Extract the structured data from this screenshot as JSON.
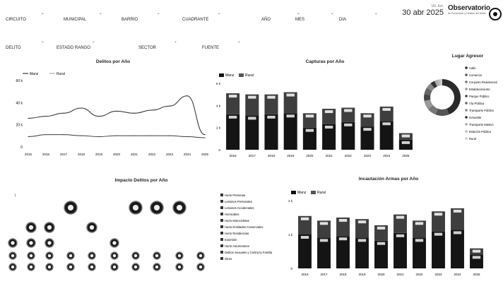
{
  "header": {
    "date": "30 abr 2025",
    "date_prefix": "Ult. Act.",
    "logo_title": "Observatorio",
    "logo_subtitle": "de Prevención y Gestión del Delito"
  },
  "filters_row1": [
    {
      "label": "CIRCUITO",
      "value": ""
    },
    {
      "label": "MUNICIPAL",
      "value": ""
    },
    {
      "label": "BARRIO",
      "value": ""
    },
    {
      "label": "CUADRANTE",
      "value": ""
    },
    {
      "label": "AÑO",
      "value": ""
    },
    {
      "label": "MES",
      "value": ""
    },
    {
      "label": "DIA",
      "value": ""
    }
  ],
  "filters_row2": [
    {
      "label": "DELITO",
      "value": ""
    },
    {
      "label": "ESTADO RANGO",
      "value": ""
    },
    {
      "label": "SECTOR",
      "value": ""
    },
    {
      "label": "FUENTE",
      "value": ""
    }
  ],
  "charts": {
    "delitos_title": "Delitos por Año",
    "capturas_title": "Capturas por Año",
    "lugar_title": "Lugar Agresor",
    "impacto_title": "Impacto Delitos por Año",
    "incautacion_title": "Incautación Armas por Año",
    "legend_manz": "Manz",
    "legend_rural": "Rural"
  },
  "chart_data": [
    {
      "type": "line",
      "title": "Delitos por Año",
      "x": [
        "2015",
        "2016",
        "2017",
        "2018",
        "2019",
        "2020",
        "2021",
        "2022",
        "2023",
        "2024",
        "2025"
      ],
      "series": [
        {
          "name": "Manz",
          "values": [
            28,
            30,
            33,
            38,
            30,
            35,
            33,
            36,
            40,
            50,
            12
          ]
        },
        {
          "name": "Rural",
          "values": [
            10,
            12,
            12,
            11,
            10,
            11,
            11,
            11,
            11,
            10,
            9
          ]
        }
      ],
      "yticks": [
        "0",
        "20 k",
        "40 k",
        "60 k"
      ],
      "ylim": [
        0,
        65
      ]
    },
    {
      "type": "bar",
      "title": "Capturas por Año",
      "categories": [
        "2016",
        "2017",
        "2018",
        "2019",
        "2020",
        "2021",
        "2022",
        "2023",
        "2024",
        "2025"
      ],
      "series": [
        {
          "name": "Manz",
          "values": [
            3.2,
            3.1,
            3.2,
            3.3,
            2.0,
            2.3,
            2.5,
            2.1,
            2.6,
            0.9
          ]
        },
        {
          "name": "Rural",
          "values": [
            1.9,
            1.9,
            1.8,
            1.9,
            1.3,
            1.4,
            1.3,
            1.2,
            1.3,
            0.6
          ]
        }
      ],
      "yticks": [
        "0",
        "2 k",
        "4 k",
        "6 k"
      ],
      "ylim": [
        0,
        6
      ]
    },
    {
      "type": "pie",
      "title": "Lugar Agresor",
      "slices": [
        {
          "label": "Calle",
          "value": 44
        },
        {
          "label": "Comercio",
          "value": 12
        },
        {
          "label": "Conjunto Residencial",
          "value": 8
        },
        {
          "label": "Establecimiento",
          "value": 8
        },
        {
          "label": "Parque Público",
          "value": 6
        },
        {
          "label": "Vía Pública",
          "value": 6
        },
        {
          "label": "Transporte Público",
          "value": 5
        },
        {
          "label": "Inmueble",
          "value": 4
        },
        {
          "label": "Transporte Masivo",
          "value": 3
        },
        {
          "label": "Estación Pública",
          "value": 2
        },
        {
          "label": "Rural",
          "value": 2
        }
      ]
    },
    {
      "type": "scatter",
      "title": "Impacto Delitos por Año",
      "legend": [
        "Hurto Personas",
        "Lesiones Personales",
        "Lesiones Accidentales",
        "Homicidios",
        "Hurto Motocicletas",
        "Hurto Entidades Comerciales",
        "Hurto Residencias",
        "Extorsión",
        "Hurto Automotores",
        "Delitos Sexuales y Contra la Familia",
        "Otros"
      ]
    },
    {
      "type": "bar",
      "title": "Incautación Armas por Año",
      "categories": [
        "2016",
        "2017",
        "2018",
        "2019",
        "2020",
        "2021",
        "2022",
        "2023",
        "2024",
        "2025"
      ],
      "series": [
        {
          "name": "Manz",
          "values": [
            1.1,
            1.0,
            1.05,
            1.0,
            0.9,
            1.15,
            1.0,
            1.2,
            1.25,
            0.45
          ]
        },
        {
          "name": "Rural",
          "values": [
            0.6,
            0.55,
            0.6,
            0.6,
            0.5,
            0.6,
            0.55,
            0.65,
            0.7,
            0.2
          ]
        }
      ],
      "yticks": [
        "0",
        "1 k",
        "2 k"
      ],
      "ylim": [
        0,
        2.2
      ]
    }
  ],
  "colors": {
    "dark": "#1a1a1a",
    "mid": "#6b6b6b",
    "light": "#cfcfcf"
  }
}
